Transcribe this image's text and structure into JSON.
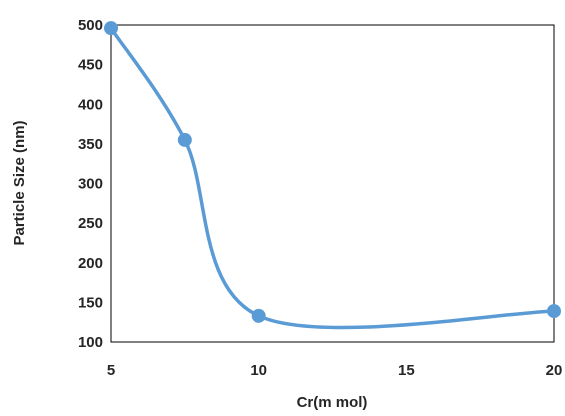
{
  "chart_data": {
    "type": "line",
    "title": "",
    "xlabel": "Cr(m mol)",
    "ylabel": "Particle Size (nm)",
    "xlim": [
      5,
      20
    ],
    "ylim": [
      100,
      500
    ],
    "x_ticks": [
      5,
      10,
      15,
      20
    ],
    "y_ticks": [
      100,
      150,
      200,
      250,
      300,
      350,
      400,
      450,
      500
    ],
    "x_tick_labels": [
      "5",
      "10",
      "15",
      "20"
    ],
    "y_tick_labels": [
      "100",
      "150",
      "200",
      "250",
      "300",
      "350",
      "400",
      "450",
      "500"
    ],
    "smooth": true,
    "grid": false,
    "legend": "none",
    "series": [
      {
        "x": [
          5,
          7.5,
          10,
          20
        ],
        "y": [
          496,
          355,
          133,
          139
        ],
        "color": "#5b9bd5"
      }
    ]
  }
}
